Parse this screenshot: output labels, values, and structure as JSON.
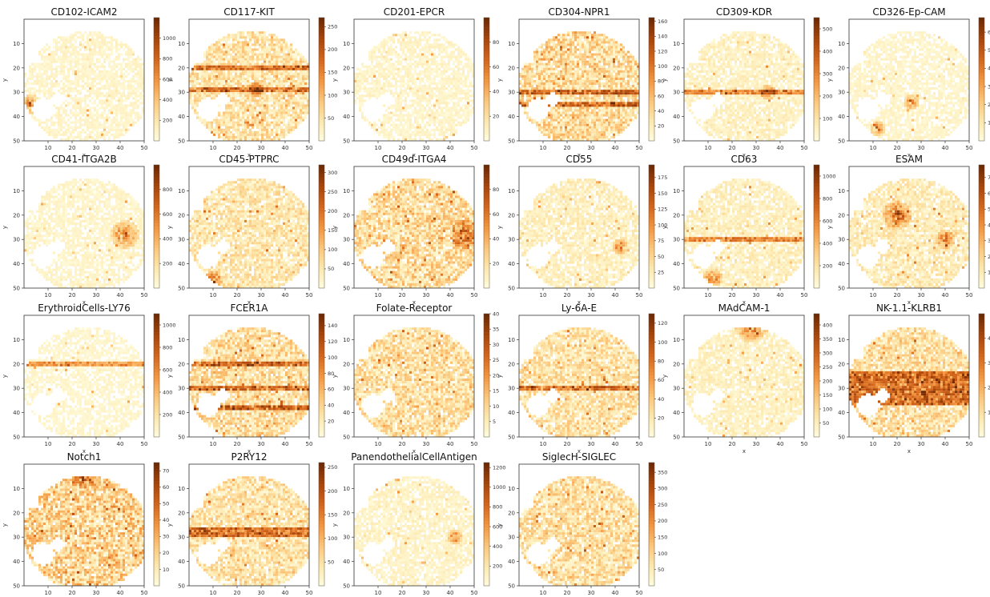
{
  "figure": {
    "colormap": [
      "#fffde0",
      "#fde9b0",
      "#fcc67a",
      "#f3963f",
      "#d4661c",
      "#a9460b",
      "#6e2a04"
    ],
    "missing_color": "#ffffff",
    "x_label": "x",
    "y_label": "y"
  },
  "chart_data": [
    {
      "type": "heatmap",
      "title": "CD102-ICAM2",
      "xlabel": "x",
      "ylabel": "y",
      "xlim": [
        0,
        50
      ],
      "ylim": [
        50,
        0
      ],
      "x_ticks": [
        "10",
        "20",
        "30",
        "40",
        "50"
      ],
      "y_ticks": [
        "10",
        "20",
        "30",
        "40",
        "50"
      ],
      "colorbar": {
        "min": 0,
        "max": 1200,
        "ticks": [
          "200",
          "400",
          "600",
          "800",
          "1000"
        ]
      },
      "intensity": 0.12,
      "stripes": [],
      "hotspots": [
        [
          3,
          35,
          4
        ]
      ]
    },
    {
      "type": "heatmap",
      "title": "CD117-KIT",
      "xlabel": "x",
      "ylabel": "y",
      "xlim": [
        0,
        50
      ],
      "ylim": [
        50,
        0
      ],
      "x_ticks": [
        "10",
        "20",
        "30",
        "40",
        "50"
      ],
      "y_ticks": [
        "10",
        "20",
        "30",
        "40",
        "50"
      ],
      "colorbar": {
        "min": 0,
        "max": 270,
        "ticks": [
          "50",
          "100",
          "150",
          "200",
          "250"
        ]
      },
      "intensity": 0.35,
      "stripes": [
        20,
        29
      ],
      "hotspots": [
        [
          28,
          29,
          3
        ]
      ]
    },
    {
      "type": "heatmap",
      "title": "CD201-EPCR",
      "xlabel": "x",
      "ylabel": "y",
      "xlim": [
        0,
        50
      ],
      "ylim": [
        50,
        0
      ],
      "x_ticks": [
        "10",
        "20",
        "30",
        "40",
        "50"
      ],
      "y_ticks": [
        "10",
        "20",
        "30",
        "40",
        "50"
      ],
      "colorbar": {
        "min": 0,
        "max": 100,
        "ticks": [
          "20",
          "40",
          "60",
          "80"
        ]
      },
      "intensity": 0.13,
      "stripes": [],
      "hotspots": [
        [
          17,
          6,
          1
        ]
      ]
    },
    {
      "type": "heatmap",
      "title": "CD304-NPR1",
      "xlabel": "x",
      "ylabel": "y",
      "xlim": [
        0,
        50
      ],
      "ylim": [
        50,
        0
      ],
      "x_ticks": [
        "10",
        "20",
        "30",
        "40",
        "50"
      ],
      "y_ticks": [
        "10",
        "20",
        "30",
        "40",
        "50"
      ],
      "colorbar": {
        "min": 0,
        "max": 165,
        "ticks": [
          "20",
          "40",
          "60",
          "80",
          "100",
          "120",
          "140",
          "160"
        ]
      },
      "intensity": 0.42,
      "stripes": [
        30,
        35
      ],
      "hotspots": [
        [
          25,
          2,
          4
        ]
      ]
    },
    {
      "type": "heatmap",
      "title": "CD309-KDR",
      "xlabel": "x",
      "ylabel": "y",
      "xlim": [
        0,
        50
      ],
      "ylim": [
        50,
        0
      ],
      "x_ticks": [
        "10",
        "20",
        "30",
        "40",
        "50"
      ],
      "y_ticks": [
        "10",
        "20",
        "30",
        "40",
        "50"
      ],
      "colorbar": {
        "min": 0,
        "max": 550,
        "ticks": [
          "100",
          "200",
          "300",
          "400",
          "500"
        ]
      },
      "intensity": 0.18,
      "stripes": [
        30
      ],
      "hotspots": [
        [
          35,
          30,
          3
        ]
      ]
    },
    {
      "type": "heatmap",
      "title": "CD326-Ep-CAM",
      "xlabel": "x",
      "ylabel": "y",
      "xlim": [
        0,
        50
      ],
      "ylim": [
        50,
        0
      ],
      "x_ticks": [
        "10",
        "20",
        "30",
        "40",
        "50"
      ],
      "y_ticks": [
        "10",
        "20",
        "30",
        "40",
        "50"
      ],
      "colorbar": {
        "min": 0,
        "max": 680,
        "ticks": [
          "100",
          "200",
          "300",
          "400",
          "500",
          "600"
        ]
      },
      "intensity": 0.12,
      "stripes": [],
      "hotspots": [
        [
          26,
          34,
          3
        ],
        [
          12,
          45,
          3
        ]
      ]
    },
    {
      "type": "heatmap",
      "title": "CD41-ITGA2B",
      "xlabel": "x",
      "ylabel": "y",
      "xlim": [
        0,
        50
      ],
      "ylim": [
        50,
        0
      ],
      "x_ticks": [
        "10",
        "20",
        "30",
        "40",
        "50"
      ],
      "y_ticks": [
        "10",
        "20",
        "30",
        "40",
        "50"
      ],
      "colorbar": {
        "min": 0,
        "max": 1000,
        "ticks": [
          "200",
          "400",
          "600",
          "800"
        ]
      },
      "intensity": 0.12,
      "stripes": [],
      "hotspots": [
        [
          42,
          28,
          6
        ]
      ]
    },
    {
      "type": "heatmap",
      "title": "CD45-PTPRC",
      "xlabel": "x",
      "ylabel": "y",
      "xlim": [
        0,
        50
      ],
      "ylim": [
        50,
        0
      ],
      "x_ticks": [
        "10",
        "20",
        "30",
        "40",
        "50"
      ],
      "y_ticks": [
        "10",
        "20",
        "30",
        "40",
        "50"
      ],
      "colorbar": {
        "min": 0,
        "max": 320,
        "ticks": [
          "50",
          "100",
          "150",
          "200",
          "250",
          "300"
        ]
      },
      "intensity": 0.3,
      "stripes": [],
      "hotspots": [
        [
          10,
          47,
          4
        ]
      ]
    },
    {
      "type": "heatmap",
      "title": "CD49d-ITGA4",
      "xlabel": "x",
      "ylabel": "y",
      "xlim": [
        0,
        50
      ],
      "ylim": [
        50,
        0
      ],
      "x_ticks": [
        "10",
        "20",
        "30",
        "40",
        "50"
      ],
      "y_ticks": [
        "10",
        "20",
        "30",
        "40",
        "50"
      ],
      "colorbar": {
        "min": 0,
        "max": 100,
        "ticks": [
          "20",
          "40",
          "60",
          "80"
        ]
      },
      "intensity": 0.42,
      "stripes": [],
      "hotspots": [
        [
          46,
          28,
          6
        ]
      ]
    },
    {
      "type": "heatmap",
      "title": "CD55",
      "xlabel": "x",
      "ylabel": "y",
      "xlim": [
        0,
        50
      ],
      "ylim": [
        50,
        0
      ],
      "x_ticks": [
        "10",
        "20",
        "30",
        "40",
        "50"
      ],
      "y_ticks": [
        "10",
        "20",
        "30",
        "40",
        "50"
      ],
      "colorbar": {
        "min": 0,
        "max": 195,
        "ticks": [
          "25",
          "50",
          "75",
          "100",
          "125",
          "150",
          "175"
        ]
      },
      "intensity": 0.2,
      "stripes": [],
      "hotspots": [
        [
          42,
          33,
          3
        ]
      ]
    },
    {
      "type": "heatmap",
      "title": "CD63",
      "xlabel": "x",
      "ylabel": "y",
      "xlim": [
        0,
        50
      ],
      "ylim": [
        50,
        0
      ],
      "x_ticks": [
        "10",
        "20",
        "30",
        "40",
        "50"
      ],
      "y_ticks": [
        "10",
        "20",
        "30",
        "40",
        "50"
      ],
      "colorbar": {
        "min": 0,
        "max": 1100,
        "ticks": [
          "200",
          "400",
          "600",
          "800",
          "1000"
        ]
      },
      "intensity": 0.2,
      "stripes": [
        30
      ],
      "hotspots": [
        [
          12,
          46,
          4
        ]
      ]
    },
    {
      "type": "heatmap",
      "title": "ESAM",
      "xlabel": "x",
      "ylabel": "y",
      "xlim": [
        0,
        50
      ],
      "ylim": [
        50,
        0
      ],
      "x_ticks": [
        "10",
        "20",
        "30",
        "40",
        "50"
      ],
      "y_ticks": [
        "10",
        "20",
        "30",
        "40",
        "50"
      ],
      "colorbar": {
        "min": 0,
        "max": 780,
        "ticks": [
          "100",
          "200",
          "300",
          "400",
          "500",
          "600",
          "700"
        ]
      },
      "intensity": 0.25,
      "stripes": [],
      "hotspots": [
        [
          20,
          20,
          6
        ],
        [
          40,
          30,
          4
        ]
      ]
    },
    {
      "type": "heatmap",
      "title": "ErythroidCells-LY76",
      "xlabel": "x",
      "ylabel": "y",
      "xlim": [
        0,
        50
      ],
      "ylim": [
        50,
        0
      ],
      "x_ticks": [
        "10",
        "20",
        "30",
        "40",
        "50"
      ],
      "y_ticks": [
        "10",
        "20",
        "30",
        "40",
        "50"
      ],
      "colorbar": {
        "min": 0,
        "max": 1100,
        "ticks": [
          "200",
          "400",
          "600",
          "800",
          "1000"
        ]
      },
      "intensity": 0.1,
      "stripes": [
        20
      ],
      "hotspots": []
    },
    {
      "type": "heatmap",
      "title": "FCER1A",
      "xlabel": "x",
      "ylabel": "y",
      "xlim": [
        0,
        50
      ],
      "ylim": [
        50,
        0
      ],
      "x_ticks": [
        "10",
        "20",
        "30",
        "40",
        "50"
      ],
      "y_ticks": [
        "10",
        "20",
        "30",
        "40",
        "50"
      ],
      "colorbar": {
        "min": 0,
        "max": 155,
        "ticks": [
          "20",
          "40",
          "60",
          "80",
          "100",
          "120",
          "140"
        ]
      },
      "intensity": 0.4,
      "stripes": [
        20,
        30,
        38
      ],
      "hotspots": []
    },
    {
      "type": "heatmap",
      "title": "Folate-Receptor",
      "xlabel": "x",
      "ylabel": "y",
      "xlim": [
        0,
        50
      ],
      "ylim": [
        50,
        0
      ],
      "x_ticks": [
        "10",
        "20",
        "30",
        "40",
        "50"
      ],
      "y_ticks": [
        "10",
        "20",
        "30",
        "40",
        "50"
      ],
      "colorbar": {
        "min": 0,
        "max": 40,
        "ticks": [
          "5",
          "10",
          "15",
          "20",
          "25",
          "30",
          "35",
          "40"
        ]
      },
      "intensity": 0.38,
      "stripes": [],
      "hotspots": []
    },
    {
      "type": "heatmap",
      "title": "Ly-6A-E",
      "xlabel": "x",
      "ylabel": "y",
      "xlim": [
        0,
        50
      ],
      "ylim": [
        50,
        0
      ],
      "x_ticks": [
        "10",
        "20",
        "30",
        "40",
        "50"
      ],
      "y_ticks": [
        "10",
        "20",
        "30",
        "40",
        "50"
      ],
      "colorbar": {
        "min": 0,
        "max": 130,
        "ticks": [
          "20",
          "40",
          "60",
          "80",
          "100",
          "120"
        ]
      },
      "intensity": 0.35,
      "stripes": [
        30
      ],
      "hotspots": [
        [
          6,
          47,
          3
        ]
      ]
    },
    {
      "type": "heatmap",
      "title": "MAdCAM-1",
      "xlabel": "x",
      "ylabel": "y",
      "xlim": [
        0,
        50
      ],
      "ylim": [
        50,
        0
      ],
      "x_ticks": [
        "10",
        "20",
        "30",
        "40",
        "50"
      ],
      "y_ticks": [
        "10",
        "20",
        "30",
        "40",
        "50"
      ],
      "colorbar": {
        "min": 0,
        "max": 440,
        "ticks": [
          "50",
          "100",
          "150",
          "200",
          "250",
          "300",
          "350",
          "400"
        ]
      },
      "intensity": 0.18,
      "stripes": [],
      "hotspots": [
        [
          28,
          4,
          7
        ]
      ]
    },
    {
      "type": "heatmap",
      "title": "NK-1.1-KLRB1",
      "xlabel": "x",
      "ylabel": "",
      "xlim": [
        0,
        50
      ],
      "ylim": [
        50,
        0
      ],
      "x_ticks": [
        "10",
        "20",
        "30",
        "40",
        "50"
      ],
      "y_ticks": [
        "10",
        "20",
        "30",
        "40",
        "50"
      ],
      "colorbar": {
        "min": 0,
        "max": 500,
        "ticks": [
          "100",
          "200",
          "300",
          "400"
        ]
      },
      "intensity": 0.38,
      "stripes": [
        24,
        26,
        28,
        30,
        32,
        34,
        36
      ],
      "hotspots": []
    },
    {
      "type": "heatmap",
      "title": "Notch1",
      "xlabel": "x",
      "ylabel": "y",
      "xlim": [
        0,
        50
      ],
      "ylim": [
        50,
        0
      ],
      "x_ticks": [
        "10",
        "20",
        "30",
        "40",
        "50"
      ],
      "y_ticks": [
        "10",
        "20",
        "30",
        "40",
        "50"
      ],
      "colorbar": {
        "min": 0,
        "max": 75,
        "ticks": [
          "10",
          "20",
          "30",
          "40",
          "50",
          "60",
          "70"
        ]
      },
      "intensity": 0.5,
      "stripes": [],
      "hotspots": [
        [
          25,
          4,
          6
        ]
      ]
    },
    {
      "type": "heatmap",
      "title": "P2RY12",
      "xlabel": "x",
      "ylabel": "y",
      "xlim": [
        0,
        50
      ],
      "ylim": [
        50,
        0
      ],
      "x_ticks": [
        "10",
        "20",
        "30",
        "40",
        "50"
      ],
      "y_ticks": [
        "10",
        "20",
        "30",
        "40",
        "50"
      ],
      "colorbar": {
        "min": 0,
        "max": 260,
        "ticks": [
          "50",
          "100",
          "150",
          "200",
          "250"
        ]
      },
      "intensity": 0.35,
      "stripes": [
        27,
        29
      ],
      "hotspots": []
    },
    {
      "type": "heatmap",
      "title": "PanendothelialCellAntigen",
      "xlabel": "x",
      "ylabel": "y",
      "xlim": [
        0,
        50
      ],
      "ylim": [
        50,
        0
      ],
      "x_ticks": [
        "10",
        "20",
        "30",
        "40",
        "50"
      ],
      "y_ticks": [
        "10",
        "20",
        "30",
        "40",
        "50"
      ],
      "colorbar": {
        "min": 0,
        "max": 1250,
        "ticks": [
          "200",
          "400",
          "600",
          "800",
          "1000",
          "1200"
        ]
      },
      "intensity": 0.15,
      "stripes": [],
      "hotspots": [
        [
          42,
          30,
          3
        ]
      ]
    },
    {
      "type": "heatmap",
      "title": "SiglecH-SIGLEC",
      "xlabel": "x",
      "ylabel": "y",
      "xlim": [
        0,
        50
      ],
      "ylim": [
        50,
        0
      ],
      "x_ticks": [
        "10",
        "20",
        "30",
        "40",
        "50"
      ],
      "y_ticks": [
        "10",
        "20",
        "30",
        "40",
        "50"
      ],
      "colorbar": {
        "min": 0,
        "max": 380,
        "ticks": [
          "50",
          "100",
          "150",
          "200",
          "250",
          "300",
          "350"
        ]
      },
      "intensity": 0.38,
      "stripes": [],
      "hotspots": [
        [
          22,
          1,
          4
        ]
      ]
    }
  ]
}
